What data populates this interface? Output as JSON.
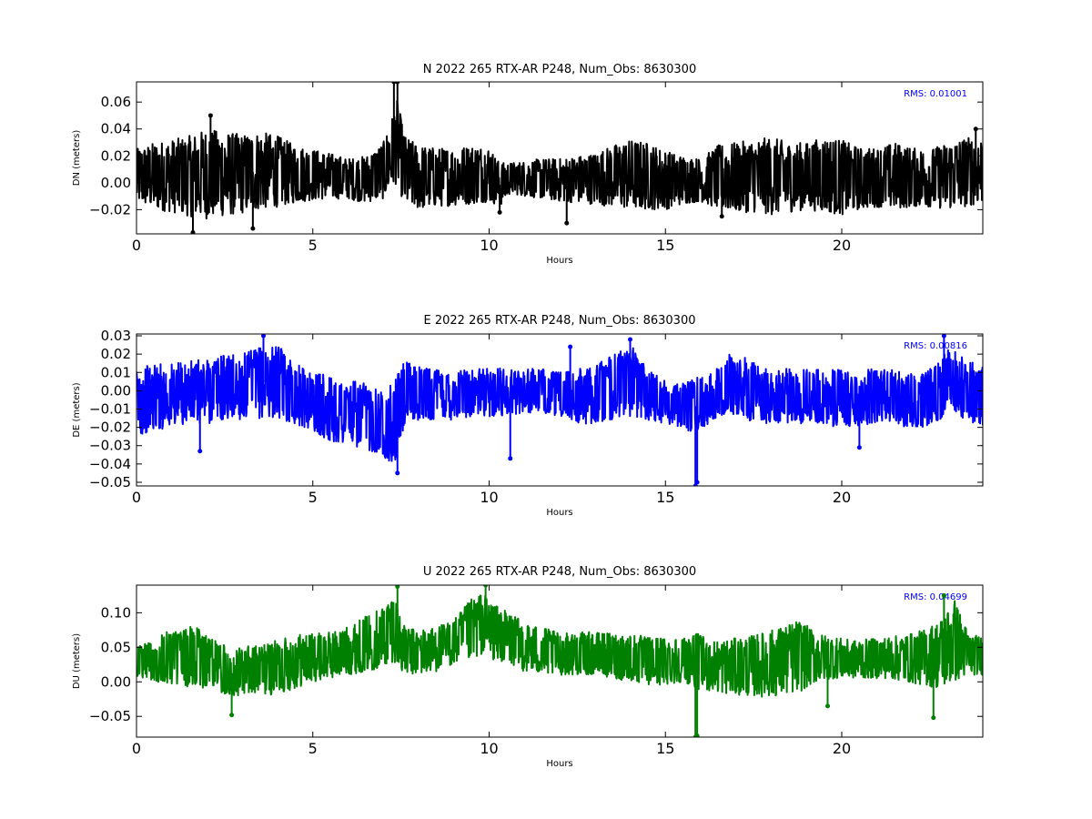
{
  "chart_data": [
    {
      "type": "line",
      "title": "N 2022 265 RTX-AR  P248, Num_Obs: 8630300",
      "xlabel": "Hours",
      "ylabel": "DN (meters)",
      "xlim": [
        0,
        24
      ],
      "ylim": [
        -0.038,
        0.075
      ],
      "xticks": [
        "0",
        "5",
        "10",
        "15",
        "20"
      ],
      "yticks": [
        "−0.02",
        "0.00",
        "0.02",
        "0.04",
        "0.06"
      ],
      "annotation": "RMS:  0.01001",
      "color": "#000000",
      "grid": false,
      "envelope": {
        "hours": [
          0,
          0.5,
          1,
          1.5,
          2,
          2.5,
          3,
          3.5,
          4,
          4.5,
          5,
          5.5,
          6,
          6.5,
          7,
          7.2,
          7.4,
          7.6,
          8,
          8.5,
          9,
          9.5,
          10,
          10.3,
          10.6,
          11,
          11.5,
          12,
          12.5,
          13,
          13.5,
          14,
          14.5,
          15,
          15.5,
          16,
          16.5,
          17,
          17.5,
          18,
          18.5,
          19,
          19.5,
          20,
          20.5,
          21,
          21.5,
          22,
          22.5,
          23,
          23.5,
          24
        ],
        "upper": [
          0.025,
          0.03,
          0.032,
          0.035,
          0.04,
          0.038,
          0.036,
          0.038,
          0.035,
          0.028,
          0.025,
          0.022,
          0.018,
          0.02,
          0.03,
          0.045,
          0.062,
          0.035,
          0.028,
          0.026,
          0.026,
          0.028,
          0.027,
          0.015,
          0.015,
          0.016,
          0.018,
          0.018,
          0.02,
          0.022,
          0.028,
          0.032,
          0.03,
          0.024,
          0.02,
          0.018,
          0.028,
          0.03,
          0.032,
          0.034,
          0.03,
          0.03,
          0.034,
          0.032,
          0.026,
          0.026,
          0.03,
          0.026,
          0.025,
          0.03,
          0.034,
          0.034
        ],
        "lower": [
          -0.015,
          -0.02,
          -0.022,
          -0.025,
          -0.027,
          -0.025,
          -0.023,
          -0.02,
          -0.018,
          -0.015,
          -0.013,
          -0.012,
          -0.012,
          -0.015,
          -0.012,
          -0.005,
          0.0,
          -0.018,
          -0.02,
          -0.018,
          -0.017,
          -0.016,
          -0.014,
          -0.018,
          -0.008,
          -0.01,
          -0.012,
          -0.014,
          -0.015,
          -0.016,
          -0.018,
          -0.02,
          -0.02,
          -0.02,
          -0.016,
          -0.014,
          -0.02,
          -0.022,
          -0.022,
          -0.024,
          -0.022,
          -0.02,
          -0.022,
          -0.024,
          -0.02,
          -0.018,
          -0.02,
          -0.018,
          -0.018,
          -0.02,
          -0.018,
          -0.015
        ]
      },
      "spikes": [
        [
          1.6,
          -0.037
        ],
        [
          2.1,
          0.05
        ],
        [
          3.3,
          -0.034
        ],
        [
          7.3,
          0.075
        ],
        [
          7.4,
          0.075
        ],
        [
          10.3,
          -0.022
        ],
        [
          12.2,
          -0.03
        ],
        [
          16.6,
          -0.025
        ],
        [
          23.8,
          0.04
        ]
      ]
    },
    {
      "type": "line",
      "title": "E 2022 265 RTX-AR  P248, Num_Obs: 8630300",
      "xlabel": "Hours",
      "ylabel": "DE (meters)",
      "xlim": [
        0,
        24
      ],
      "ylim": [
        -0.052,
        0.031
      ],
      "xticks": [
        "0",
        "5",
        "10",
        "15",
        "20"
      ],
      "yticks": [
        "−0.05",
        "−0.04",
        "−0.03",
        "−0.02",
        "−0.01",
        "0.00",
        "0.01",
        "0.02",
        "0.03"
      ],
      "annotation": "RMS:  0.00816",
      "color": "#0000ff",
      "grid": false,
      "envelope": {
        "hours": [
          0,
          0.5,
          1,
          1.5,
          2,
          2.5,
          3,
          3.5,
          4,
          4.5,
          5,
          5.5,
          6,
          6.5,
          7,
          7.3,
          7.6,
          8,
          8.5,
          9,
          9.5,
          10,
          10.5,
          11,
          11.5,
          12,
          12.5,
          13,
          13.5,
          14,
          14.5,
          15,
          15.5,
          15.9,
          16.3,
          16.8,
          17.3,
          17.8,
          18.3,
          18.8,
          19.3,
          19.8,
          20.3,
          20.8,
          21.3,
          21.8,
          22.3,
          22.8,
          23,
          23.5,
          24
        ],
        "upper": [
          0.012,
          0.015,
          0.015,
          0.016,
          0.018,
          0.02,
          0.02,
          0.024,
          0.025,
          0.015,
          0.01,
          0.008,
          0.006,
          0.004,
          0.0,
          0.005,
          0.016,
          0.014,
          0.012,
          0.012,
          0.012,
          0.012,
          0.013,
          0.012,
          0.012,
          0.01,
          0.012,
          0.014,
          0.02,
          0.025,
          0.015,
          0.006,
          0.004,
          0.008,
          0.01,
          0.02,
          0.018,
          0.012,
          0.012,
          0.012,
          0.012,
          0.012,
          0.01,
          0.012,
          0.012,
          0.01,
          0.01,
          0.016,
          0.024,
          0.018,
          0.014
        ],
        "lower": [
          -0.025,
          -0.022,
          -0.02,
          -0.018,
          -0.018,
          -0.016,
          -0.016,
          -0.015,
          -0.015,
          -0.018,
          -0.022,
          -0.028,
          -0.03,
          -0.032,
          -0.035,
          -0.044,
          -0.02,
          -0.016,
          -0.016,
          -0.016,
          -0.014,
          -0.014,
          -0.014,
          -0.012,
          -0.012,
          -0.014,
          -0.018,
          -0.018,
          -0.016,
          -0.014,
          -0.016,
          -0.018,
          -0.02,
          -0.025,
          -0.016,
          -0.012,
          -0.016,
          -0.018,
          -0.018,
          -0.018,
          -0.018,
          -0.02,
          -0.02,
          -0.018,
          -0.018,
          -0.02,
          -0.02,
          -0.016,
          -0.008,
          -0.016,
          -0.02
        ]
      },
      "spikes": [
        [
          1.8,
          -0.033
        ],
        [
          3.6,
          0.03
        ],
        [
          7.4,
          -0.045
        ],
        [
          10.6,
          -0.037
        ],
        [
          12.3,
          0.024
        ],
        [
          14.0,
          0.028
        ],
        [
          15.85,
          -0.052
        ],
        [
          15.9,
          -0.05
        ],
        [
          20.5,
          -0.031
        ],
        [
          22.9,
          0.03
        ]
      ]
    },
    {
      "type": "line",
      "title": "U 2022 265 RTX-AR  P248, Num_Obs: 8630300",
      "xlabel": "Hours",
      "ylabel": "DU (meters)",
      "xlim": [
        0,
        24
      ],
      "ylim": [
        -0.08,
        0.14
      ],
      "xticks": [
        "0",
        "5",
        "10",
        "15",
        "20"
      ],
      "yticks": [
        "−0.05",
        "0.00",
        "0.05",
        "0.10"
      ],
      "annotation": "RMS:  0.04699",
      "color": "#008000",
      "grid": false,
      "envelope": {
        "hours": [
          0,
          0.5,
          1,
          1.5,
          2,
          2.3,
          2.7,
          3,
          3.5,
          4,
          4.5,
          5,
          5.5,
          6,
          6.5,
          7,
          7.3,
          7.6,
          8,
          8.5,
          9,
          9.5,
          9.8,
          10.2,
          10.6,
          11,
          11.5,
          12,
          12.5,
          13,
          13.5,
          14,
          14.5,
          15,
          15.5,
          15.9,
          16.3,
          16.8,
          17.3,
          17.8,
          18.3,
          18.8,
          19.3,
          19.8,
          20.3,
          20.8,
          21.3,
          21.8,
          22.3,
          22.8,
          23.2,
          23.6,
          24
        ],
        "upper": [
          0.055,
          0.065,
          0.075,
          0.08,
          0.075,
          0.06,
          0.045,
          0.05,
          0.055,
          0.06,
          0.07,
          0.07,
          0.072,
          0.08,
          0.095,
          0.11,
          0.13,
          0.08,
          0.075,
          0.08,
          0.09,
          0.12,
          0.13,
          0.11,
          0.1,
          0.085,
          0.08,
          0.07,
          0.072,
          0.072,
          0.07,
          0.07,
          0.065,
          0.065,
          0.065,
          0.07,
          0.06,
          0.062,
          0.065,
          0.072,
          0.08,
          0.09,
          0.07,
          0.065,
          0.06,
          0.062,
          0.065,
          0.068,
          0.075,
          0.09,
          0.12,
          0.07,
          0.065
        ],
        "lower": [
          0.005,
          0.0,
          -0.005,
          -0.008,
          -0.01,
          -0.015,
          -0.02,
          -0.02,
          -0.02,
          -0.018,
          -0.01,
          0.0,
          0.005,
          0.01,
          0.015,
          0.02,
          0.03,
          0.01,
          0.01,
          0.015,
          0.025,
          0.03,
          0.04,
          0.03,
          0.025,
          0.015,
          0.01,
          0.01,
          0.01,
          0.01,
          0.005,
          0.0,
          -0.005,
          -0.005,
          0.0,
          -0.01,
          -0.015,
          -0.018,
          -0.02,
          -0.022,
          -0.02,
          -0.015,
          0.0,
          0.005,
          0.005,
          0.005,
          0.005,
          0.0,
          -0.005,
          -0.01,
          0.0,
          0.01,
          0.01
        ]
      },
      "spikes": [
        [
          2.7,
          -0.048
        ],
        [
          7.4,
          0.138
        ],
        [
          9.9,
          0.14
        ],
        [
          15.85,
          -0.08
        ],
        [
          15.9,
          -0.078
        ],
        [
          19.6,
          -0.035
        ],
        [
          22.6,
          -0.052
        ],
        [
          22.9,
          0.125
        ]
      ]
    }
  ]
}
